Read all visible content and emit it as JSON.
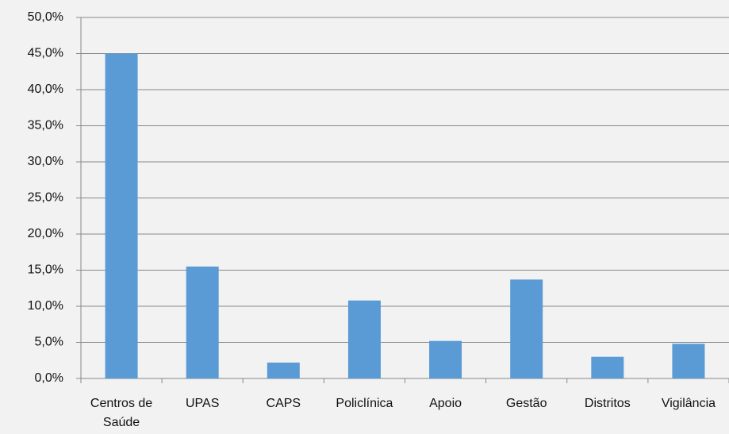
{
  "chart_data": {
    "type": "bar",
    "categories": [
      "Centros de Saúde",
      "UPAS",
      "CAPS",
      "Policlínica",
      "Apoio",
      "Gestão",
      "Distritos",
      "Vigilância"
    ],
    "values": [
      45.0,
      15.5,
      2.2,
      10.8,
      5.2,
      13.7,
      3.0,
      4.8
    ],
    "color": "#5b9bd5",
    "ylim": [
      0,
      50
    ],
    "yticks": [
      {
        "value": 0,
        "label": "0,0%"
      },
      {
        "value": 5,
        "label": "5,0%"
      },
      {
        "value": 10,
        "label": "10,0%"
      },
      {
        "value": 15,
        "label": "15,0%"
      },
      {
        "value": 20,
        "label": "20,0%"
      },
      {
        "value": 25,
        "label": "25,0%"
      },
      {
        "value": 30,
        "label": "30,0%"
      },
      {
        "value": 35,
        "label": "35,0%"
      },
      {
        "value": 40,
        "label": "40,0%"
      },
      {
        "value": 45,
        "label": "45,0%"
      },
      {
        "value": 50,
        "label": "50,0%"
      }
    ],
    "grid": true
  }
}
